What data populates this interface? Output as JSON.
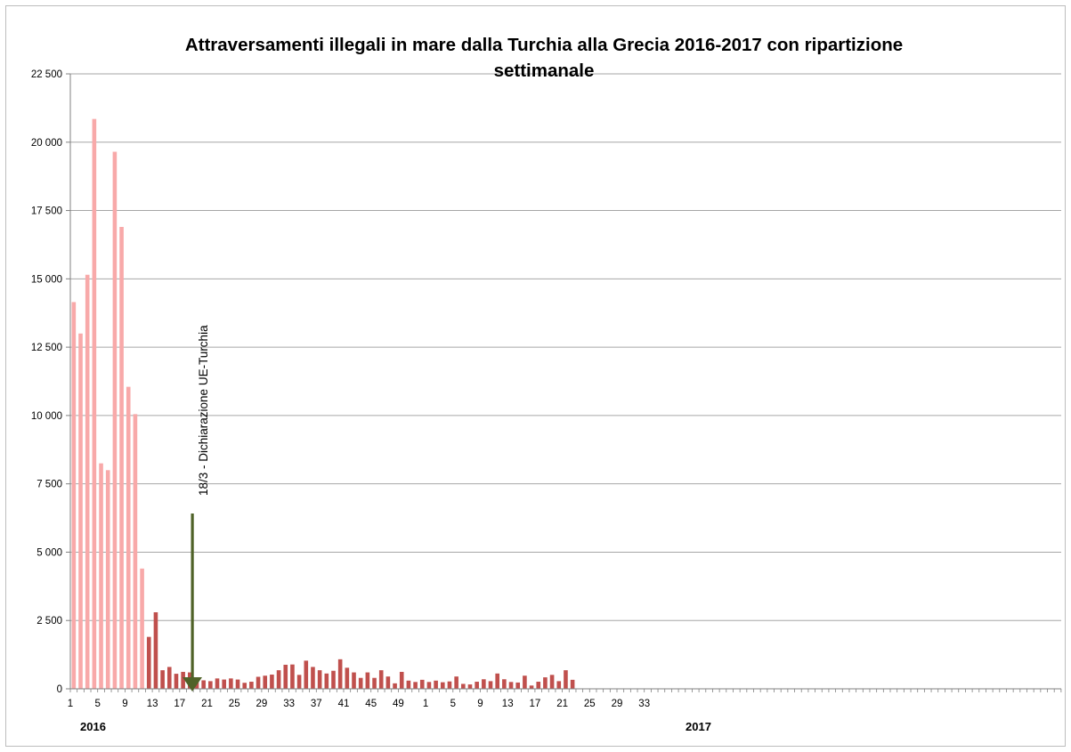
{
  "chart_data": {
    "type": "bar",
    "title_line1": "Attraversamenti illegali in mare dalla Turchia alla Grecia 2016-2017 con ripartizione",
    "title_line2": "settimanale",
    "ylim": [
      0,
      22500
    ],
    "yticks": [
      "0",
      "2 500",
      "5 000",
      "7 500",
      "10 000",
      "12 500",
      "15 000",
      "17 500",
      "20 000",
      "22 500"
    ],
    "xtick_labels": [
      "1",
      "5",
      "9",
      "13",
      "17",
      "21",
      "25",
      "29",
      "33",
      "37",
      "41",
      "45",
      "49",
      "1",
      "5",
      "9",
      "13",
      "17",
      "21",
      "25",
      "29",
      "33"
    ],
    "year_labels": [
      "2016",
      "2017"
    ],
    "grid": true,
    "annotation": "18/3 - Dichiarazione UE-Turchia",
    "colors": {
      "before": "#f8a9a9",
      "after": "#c0504d",
      "arrow": "#4f6228",
      "grid": "#a6a6a6"
    },
    "series": [
      {
        "values_2016": [
          14150,
          13000,
          15150,
          20850,
          8250,
          8000,
          19650,
          16900,
          11050,
          10050,
          4400,
          1900,
          2800,
          680,
          800,
          550,
          620,
          600,
          250,
          310,
          280,
          380,
          340,
          380,
          340,
          220,
          260,
          440,
          480,
          520,
          680,
          880,
          890,
          510,
          1030,
          800,
          680,
          560,
          660,
          1080,
          770,
          600,
          400,
          600,
          400,
          680,
          450,
          200,
          620,
          300,
          250,
          330,
          250,
          300
        ]
      },
      {
        "values_2017": [
          240,
          270,
          450,
          180,
          160,
          260,
          350,
          280,
          560,
          350,
          250,
          230,
          480,
          120,
          260,
          420,
          510,
          280,
          680,
          330
        ]
      }
    ]
  }
}
